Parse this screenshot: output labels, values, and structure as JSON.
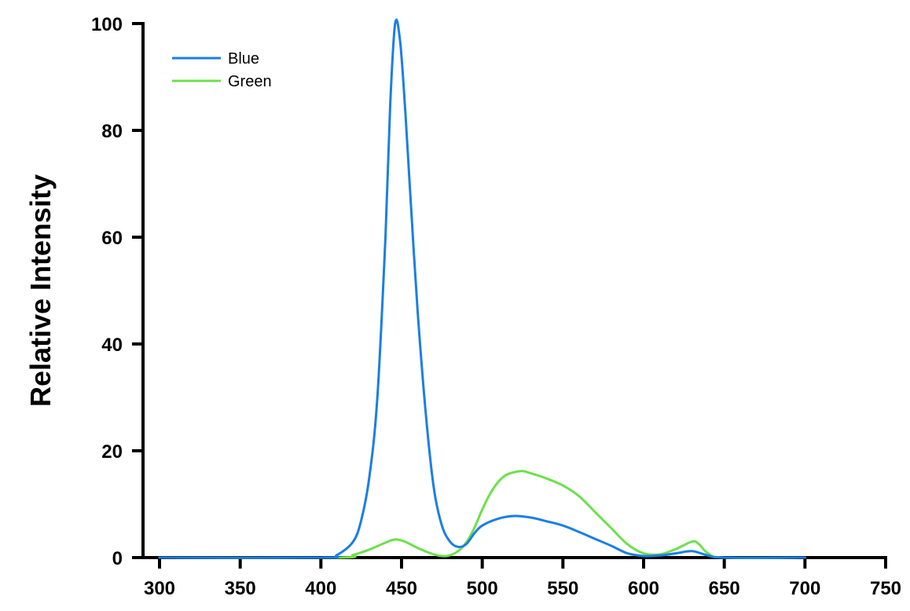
{
  "chart_data": {
    "type": "line",
    "title": "",
    "xlabel": "",
    "ylabel": "Relative Intensity",
    "xlim": [
      300,
      750
    ],
    "ylim": [
      0,
      100
    ],
    "x_ticks": [
      300,
      350,
      400,
      450,
      500,
      550,
      600,
      650,
      700,
      750
    ],
    "y_ticks": [
      0,
      20,
      40,
      60,
      80,
      100
    ],
    "grid": false,
    "legend": "top-left",
    "series": [
      {
        "name": "Blue",
        "color": "#1a7ee6",
        "points": [
          [
            300,
            0
          ],
          [
            400,
            0
          ],
          [
            410,
            0.5
          ],
          [
            420,
            3
          ],
          [
            425,
            7
          ],
          [
            430,
            15
          ],
          [
            435,
            30
          ],
          [
            440,
            60
          ],
          [
            443,
            85
          ],
          [
            446,
            100
          ],
          [
            449,
            97
          ],
          [
            452,
            85
          ],
          [
            455,
            70
          ],
          [
            460,
            46
          ],
          [
            465,
            27
          ],
          [
            470,
            13
          ],
          [
            475,
            6
          ],
          [
            480,
            3
          ],
          [
            485,
            2
          ],
          [
            490,
            2.5
          ],
          [
            495,
            4.5
          ],
          [
            500,
            6
          ],
          [
            510,
            7.3
          ],
          [
            520,
            7.8
          ],
          [
            530,
            7.5
          ],
          [
            540,
            6.8
          ],
          [
            550,
            6
          ],
          [
            560,
            4.8
          ],
          [
            570,
            3.5
          ],
          [
            580,
            2.2
          ],
          [
            590,
            0.8
          ],
          [
            600,
            0.3
          ],
          [
            610,
            0.4
          ],
          [
            620,
            0.8
          ],
          [
            630,
            1.2
          ],
          [
            640,
            0.4
          ],
          [
            650,
            0
          ],
          [
            700,
            0
          ]
        ]
      },
      {
        "name": "Green",
        "color": "#6de04c",
        "points": [
          [
            300,
            0
          ],
          [
            410,
            0
          ],
          [
            420,
            0.5
          ],
          [
            430,
            1.5
          ],
          [
            440,
            2.8
          ],
          [
            446,
            3.4
          ],
          [
            452,
            3
          ],
          [
            460,
            1.8
          ],
          [
            470,
            0.6
          ],
          [
            478,
            0.3
          ],
          [
            485,
            1.2
          ],
          [
            490,
            2.8
          ],
          [
            495,
            5.5
          ],
          [
            500,
            9
          ],
          [
            505,
            12
          ],
          [
            510,
            14.2
          ],
          [
            515,
            15.5
          ],
          [
            520,
            16
          ],
          [
            525,
            16.2
          ],
          [
            530,
            15.8
          ],
          [
            540,
            14.8
          ],
          [
            550,
            13.5
          ],
          [
            560,
            11.5
          ],
          [
            570,
            8.5
          ],
          [
            580,
            5.5
          ],
          [
            590,
            2.5
          ],
          [
            600,
            0.8
          ],
          [
            610,
            0.6
          ],
          [
            620,
            1.6
          ],
          [
            630,
            3
          ],
          [
            634,
            2.6
          ],
          [
            640,
            0.8
          ],
          [
            650,
            0
          ],
          [
            700,
            0
          ]
        ]
      }
    ]
  }
}
